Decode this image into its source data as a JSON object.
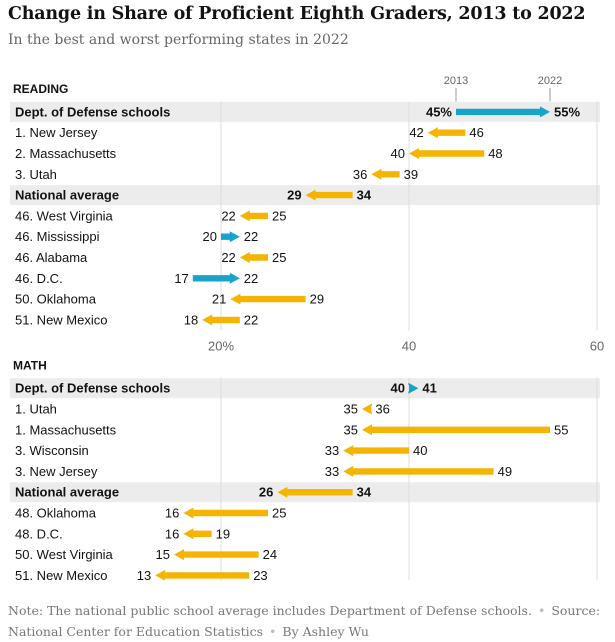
{
  "title": "Change in Share of Proficient Eighth Graders, 2013 to 2022",
  "subtitle": "In the best and worst performing states in 2022",
  "legend": {
    "start": "2013",
    "end": "2022"
  },
  "colors": {
    "decrease": "#f5b400",
    "increase": "#1aa3c8",
    "band": "#ececec",
    "grid": "#dddddd",
    "text": "#121212",
    "axis_text": "#666666"
  },
  "note": {
    "text": "Note: The national public school average includes Department of Defense schools.",
    "source": "Source: National Center for Education Statistics",
    "byline": "By Ashley Wu"
  },
  "chart_data": [
    {
      "type": "arrow",
      "panel": "READING",
      "xlim": [
        0,
        60
      ],
      "x_ticks": [
        "20%",
        "40",
        "60"
      ],
      "x_tick_values": [
        20,
        40,
        60
      ],
      "rows": [
        {
          "label": "Dept. of Defense schools",
          "start": 45,
          "end": 55,
          "start_label": "45%",
          "end_label": "55%",
          "highlight": true
        },
        {
          "label": "1. New Jersey",
          "start": 46,
          "end": 42,
          "start_label": "46",
          "end_label": "42"
        },
        {
          "label": "2. Massachusetts",
          "start": 48,
          "end": 40,
          "start_label": "48",
          "end_label": "40"
        },
        {
          "label": "3. Utah",
          "start": 39,
          "end": 36,
          "start_label": "39",
          "end_label": "36"
        },
        {
          "label": "National average",
          "start": 34,
          "end": 29,
          "start_label": "34",
          "end_label": "29",
          "highlight": true
        },
        {
          "label": "46. West Virginia",
          "start": 25,
          "end": 22,
          "start_label": "25",
          "end_label": "22"
        },
        {
          "label": "46. Mississippi",
          "start": 20,
          "end": 22,
          "start_label": "20",
          "end_label": "22"
        },
        {
          "label": "46. Alabama",
          "start": 25,
          "end": 22,
          "start_label": "25",
          "end_label": "22"
        },
        {
          "label": "46. D.C.",
          "start": 17,
          "end": 22,
          "start_label": "17",
          "end_label": "22"
        },
        {
          "label": "50. Oklahoma",
          "start": 29,
          "end": 21,
          "start_label": "29",
          "end_label": "21"
        },
        {
          "label": "51. New Mexico",
          "start": 22,
          "end": 18,
          "start_label": "22",
          "end_label": "18"
        }
      ]
    },
    {
      "type": "arrow",
      "panel": "MATH",
      "xlim": [
        0,
        60
      ],
      "rows": [
        {
          "label": "Dept. of Defense schools",
          "start": 40,
          "end": 41,
          "start_label": "40",
          "end_label": "41",
          "highlight": true
        },
        {
          "label": "1. Utah",
          "start": 36,
          "end": 35,
          "start_label": "36",
          "end_label": "35"
        },
        {
          "label": "1. Massachusetts",
          "start": 55,
          "end": 35,
          "start_label": "55",
          "end_label": "35"
        },
        {
          "label": "3. Wisconsin",
          "start": 40,
          "end": 33,
          "start_label": "40",
          "end_label": "33"
        },
        {
          "label": "3. New Jersey",
          "start": 49,
          "end": 33,
          "start_label": "49",
          "end_label": "33"
        },
        {
          "label": "National average",
          "start": 34,
          "end": 26,
          "start_label": "34",
          "end_label": "26",
          "highlight": true
        },
        {
          "label": "48. Oklahoma",
          "start": 25,
          "end": 16,
          "start_label": "25",
          "end_label": "16"
        },
        {
          "label": "48. D.C.",
          "start": 19,
          "end": 16,
          "start_label": "19",
          "end_label": "16"
        },
        {
          "label": "50. West Virginia",
          "start": 24,
          "end": 15,
          "start_label": "24",
          "end_label": "15"
        },
        {
          "label": "51. New Mexico",
          "start": 23,
          "end": 13,
          "start_label": "23",
          "end_label": "13"
        }
      ]
    }
  ]
}
